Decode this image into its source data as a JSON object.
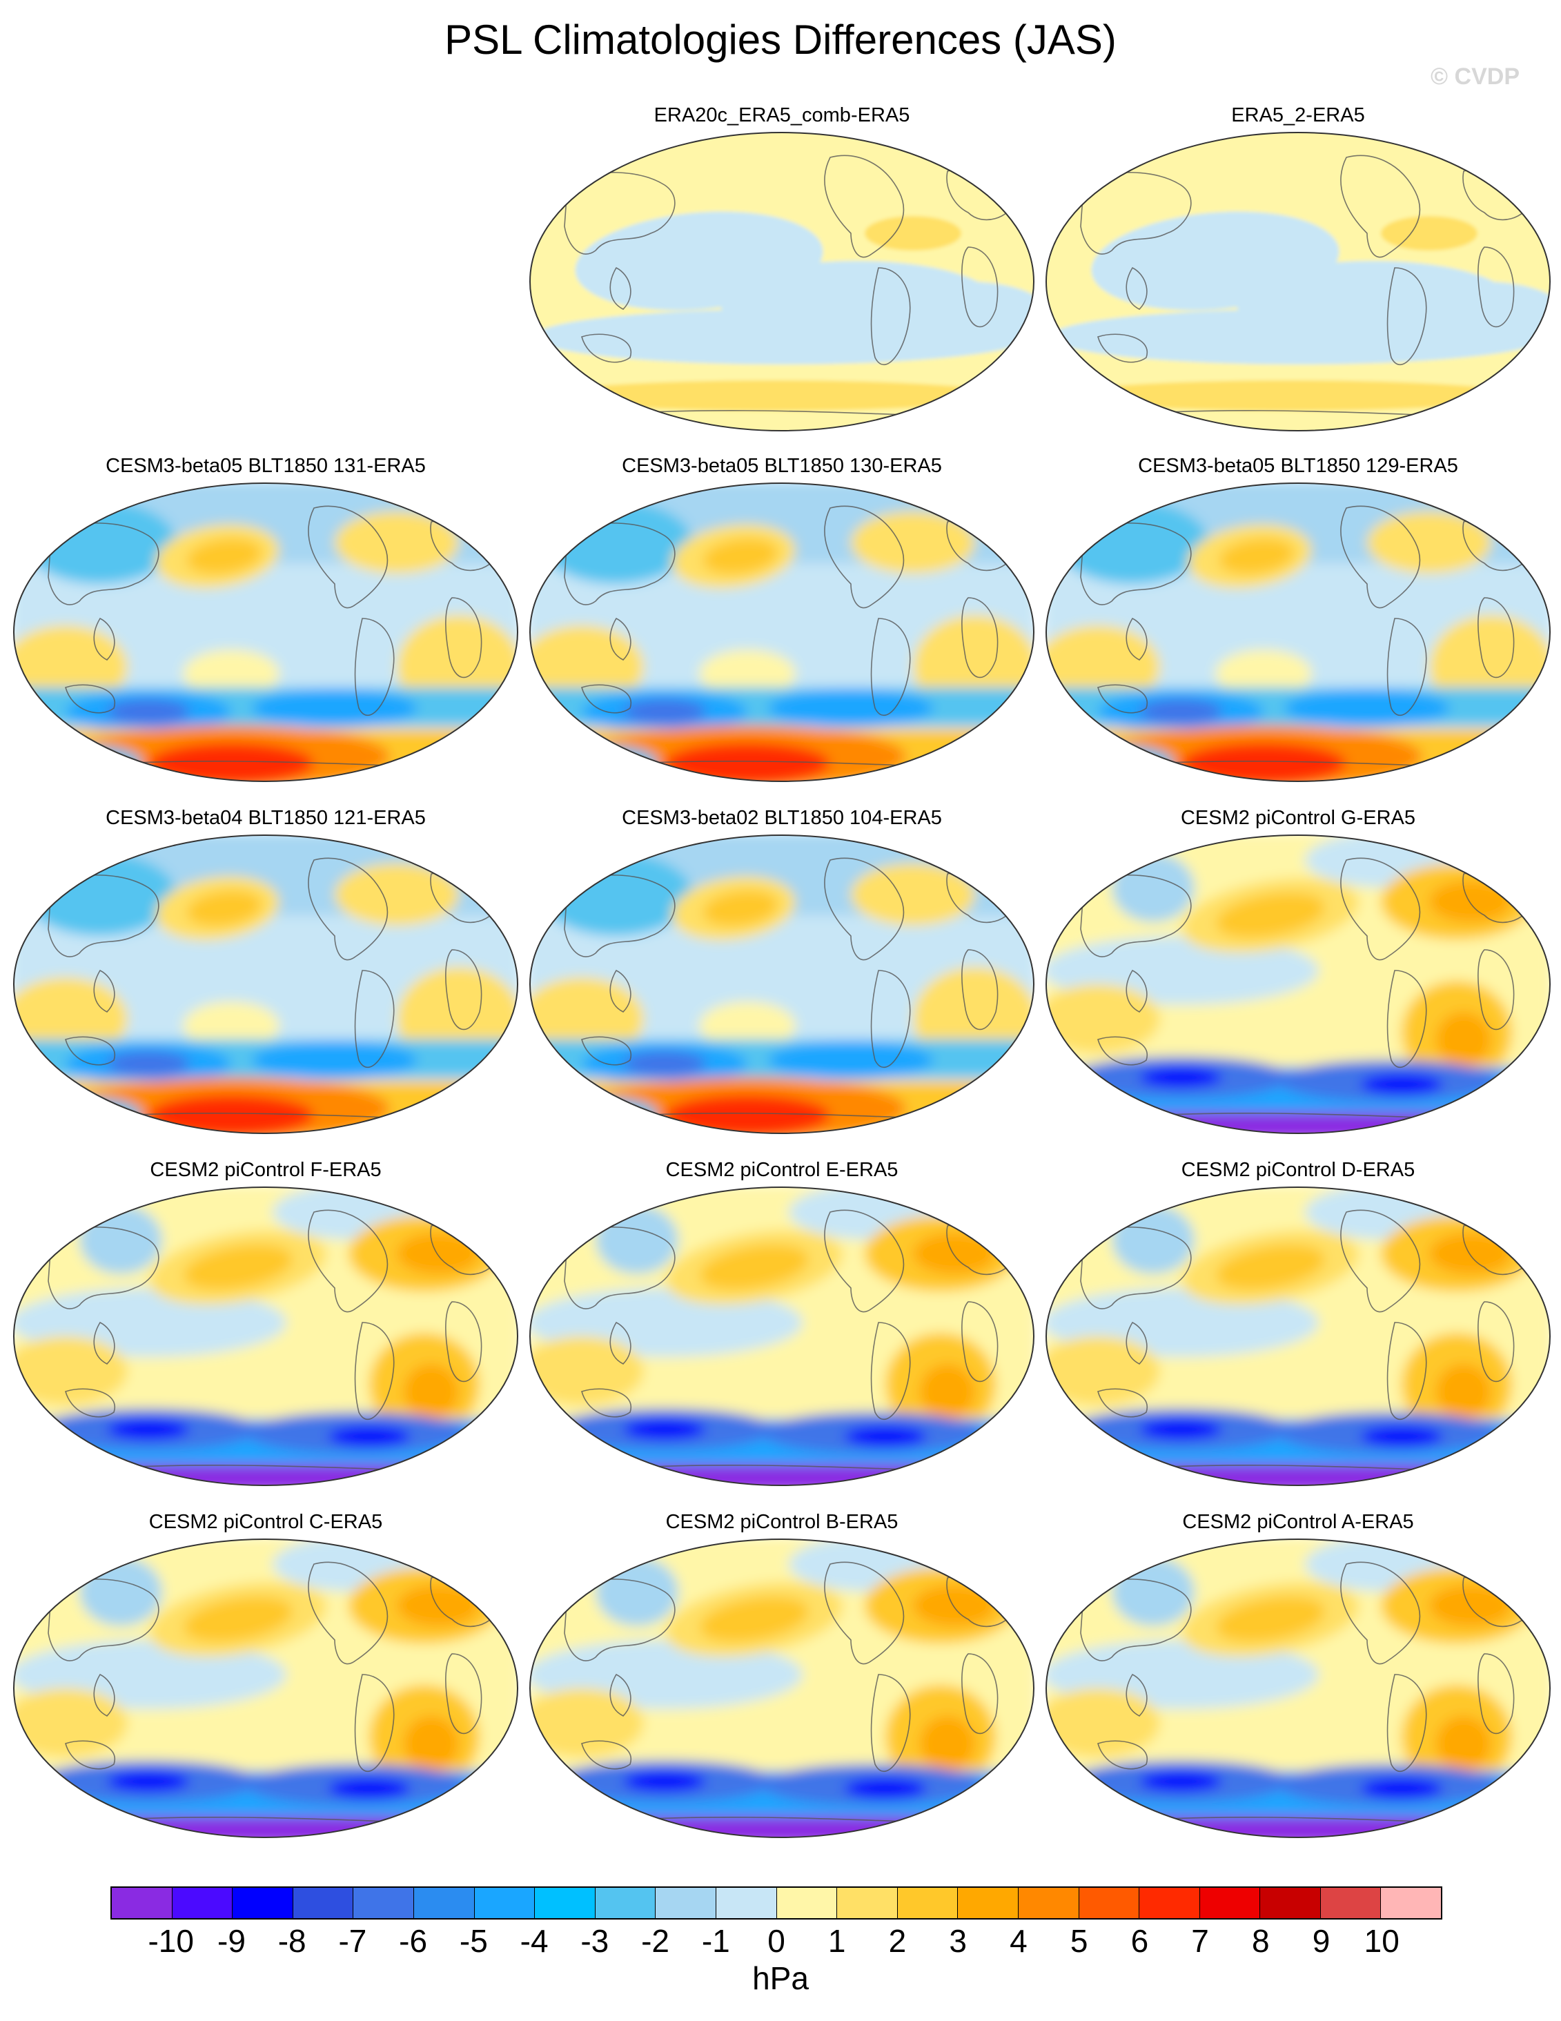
{
  "title": "PSL Climatologies Differences (JAS)",
  "watermark": "© CVDP",
  "colorbar": {
    "unit": "hPa",
    "levels": [
      "-10",
      "-9",
      "-8",
      "-7",
      "-6",
      "-5",
      "-4",
      "-3",
      "-2",
      "-1",
      "0",
      "1",
      "2",
      "3",
      "4",
      "5",
      "6",
      "7",
      "8",
      "9",
      "10"
    ],
    "colors": [
      "#8a2be2",
      "#4b0aff",
      "#0000ff",
      "#2e4fe0",
      "#3f74e8",
      "#2b8cf0",
      "#1aa6ff",
      "#00c0ff",
      "#54c4f0",
      "#a6d6f2",
      "#c8e6f6",
      "#fff6a8",
      "#ffe066",
      "#ffc82a",
      "#ffa800",
      "#ff8800",
      "#ff5a00",
      "#ff2a00",
      "#ee0000",
      "#c80000",
      "#dd4444",
      "#ffb6b6"
    ]
  },
  "panels": [
    {
      "title": "ERA20c_ERA5_comb-ERA5",
      "kind": "reanalysis",
      "icon": "world-map"
    },
    {
      "title": "ERA5_2-ERA5",
      "kind": "reanalysis",
      "icon": "world-map"
    },
    {
      "title": "CESM3-beta05 BLT1850 131-ERA5",
      "kind": "beta",
      "icon": "world-map"
    },
    {
      "title": "CESM3-beta05 BLT1850 130-ERA5",
      "kind": "beta",
      "icon": "world-map"
    },
    {
      "title": "CESM3-beta05 BLT1850 129-ERA5",
      "kind": "beta",
      "icon": "world-map"
    },
    {
      "title": "CESM3-beta04 BLT1850 121-ERA5",
      "kind": "beta",
      "icon": "world-map"
    },
    {
      "title": "CESM3-beta02 BLT1850 104-ERA5",
      "kind": "beta",
      "icon": "world-map"
    },
    {
      "title": "CESM2 piControl G-ERA5",
      "kind": "cesm2",
      "icon": "world-map"
    },
    {
      "title": "CESM2 piControl F-ERA5",
      "kind": "cesm2",
      "icon": "world-map"
    },
    {
      "title": "CESM2 piControl E-ERA5",
      "kind": "cesm2",
      "icon": "world-map"
    },
    {
      "title": "CESM2 piControl D-ERA5",
      "kind": "cesm2",
      "icon": "world-map"
    },
    {
      "title": "CESM2 piControl C-ERA5",
      "kind": "cesm2",
      "icon": "world-map"
    },
    {
      "title": "CESM2 piControl B-ERA5",
      "kind": "cesm2",
      "icon": "world-map"
    },
    {
      "title": "CESM2 piControl A-ERA5",
      "kind": "cesm2",
      "icon": "world-map"
    }
  ]
}
